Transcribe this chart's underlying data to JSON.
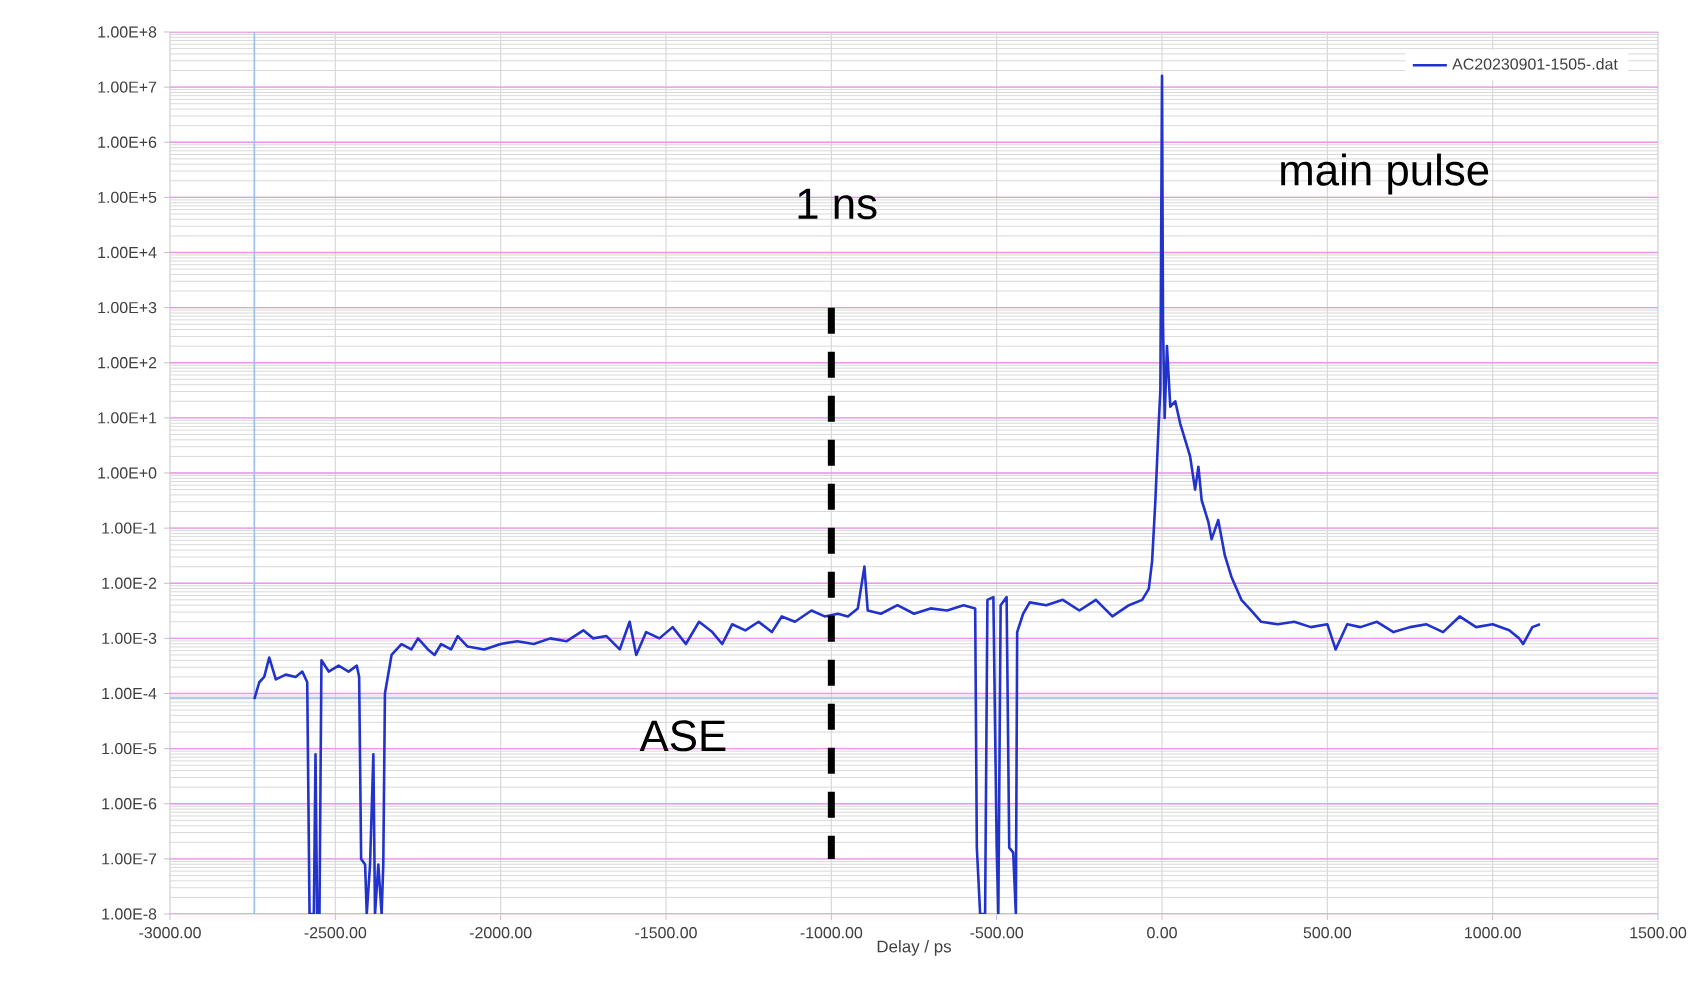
{
  "chart_data": {
    "type": "line",
    "xlabel": "Delay / ps",
    "xlim": [
      -3000,
      1500
    ],
    "xticks": [
      {
        "value": -3000,
        "label": "-3000.00"
      },
      {
        "value": -2500,
        "label": "-2500.00"
      },
      {
        "value": -2000,
        "label": "-2000.00"
      },
      {
        "value": -1500,
        "label": "-1500.00"
      },
      {
        "value": -1000,
        "label": "-1000.00"
      },
      {
        "value": -500,
        "label": "-500.00"
      },
      {
        "value": 0,
        "label": "0.00"
      },
      {
        "value": 500,
        "label": "500.00"
      },
      {
        "value": 1000,
        "label": "1000.00"
      },
      {
        "value": 1500,
        "label": "1500.00"
      }
    ],
    "ylim": [
      1e-08,
      100000000.0
    ],
    "log": "y",
    "yticks": [
      {
        "value": 1e-08,
        "label": "1.00E-8"
      },
      {
        "value": 1e-07,
        "label": "1.00E-7"
      },
      {
        "value": 1e-06,
        "label": "1.00E-6"
      },
      {
        "value": 1e-05,
        "label": "1.00E-5"
      },
      {
        "value": 0.0001,
        "label": "1.00E-4"
      },
      {
        "value": 0.001,
        "label": "1.00E-3"
      },
      {
        "value": 0.01,
        "label": "1.00E-2"
      },
      {
        "value": 0.1,
        "label": "1.00E-1"
      },
      {
        "value": 1,
        "label": "1.00E+0"
      },
      {
        "value": 10,
        "label": "1.00E+1"
      },
      {
        "value": 100,
        "label": "1.00E+2"
      },
      {
        "value": 1000,
        "label": "1.00E+3"
      },
      {
        "value": 10000.0,
        "label": "1.00E+4"
      },
      {
        "value": 100000.0,
        "label": "1.00E+5"
      },
      {
        "value": 1000000.0,
        "label": "1.00E+6"
      },
      {
        "value": 10000000.0,
        "label": "1.00E+7"
      },
      {
        "value": 100000000.0,
        "label": "1.00E+8"
      }
    ],
    "grid": true,
    "legend": "top right",
    "series": [
      {
        "name": "AC20230901-1505-.dat",
        "color": "#2233cc",
        "line_style": "solid",
        "x": [
          -2745,
          -2730,
          -2715,
          -2700,
          -2680,
          -2650,
          -2620,
          -2600,
          -2585,
          -2578,
          -2565,
          -2560,
          -2555,
          -2548,
          -2542,
          -2520,
          -2490,
          -2460,
          -2435,
          -2428,
          -2422,
          -2410,
          -2405,
          -2395,
          -2385,
          -2380,
          -2370,
          -2360,
          -2355,
          -2350,
          -2330,
          -2300,
          -2270,
          -2250,
          -2220,
          -2200,
          -2180,
          -2150,
          -2130,
          -2100,
          -2050,
          -2000,
          -1950,
          -1900,
          -1850,
          -1800,
          -1750,
          -1720,
          -1680,
          -1640,
          -1610,
          -1590,
          -1560,
          -1520,
          -1480,
          -1440,
          -1400,
          -1360,
          -1330,
          -1300,
          -1260,
          -1220,
          -1180,
          -1150,
          -1110,
          -1060,
          -1020,
          -980,
          -950,
          -920,
          -900,
          -890,
          -850,
          -800,
          -750,
          -700,
          -650,
          -600,
          -565,
          -560,
          -550,
          -535,
          -528,
          -510,
          -500,
          -495,
          -488,
          -470,
          -462,
          -450,
          -442,
          -438,
          -420,
          -400,
          -350,
          -300,
          -250,
          -200,
          -150,
          -100,
          -60,
          -40,
          -30,
          -20,
          -10,
          -5,
          0,
          3,
          8,
          15,
          25,
          40,
          55,
          70,
          85,
          100,
          110,
          120,
          140,
          150,
          170,
          190,
          210,
          240,
          270,
          300,
          350,
          400,
          450,
          500,
          525,
          560,
          600,
          650,
          700,
          750,
          800,
          850,
          900,
          950,
          1000,
          1050,
          1080,
          1092,
          1120,
          1143
        ],
        "values": [
          7.9e-05,
          0.00016,
          0.0002,
          0.00045,
          0.00018,
          0.00022,
          0.0002,
          0.00025,
          0.00016,
          1e-08,
          1e-08,
          7.9e-06,
          1e-08,
          1e-08,
          0.0004,
          0.00025,
          0.00032,
          0.00025,
          0.00032,
          0.0002,
          1e-07,
          7.9e-08,
          1e-08,
          7.9e-08,
          7.9e-06,
          1e-08,
          7.9e-08,
          1e-08,
          7.9e-08,
          0.0001,
          0.0005,
          0.00079,
          0.00063,
          0.001,
          0.00063,
          0.0005,
          0.00079,
          0.00063,
          0.0011,
          0.00071,
          0.00063,
          0.00079,
          0.00089,
          0.00079,
          0.001,
          0.00089,
          0.0014,
          0.001,
          0.0011,
          0.00063,
          0.002,
          0.0005,
          0.0013,
          0.001,
          0.0016,
          0.00079,
          0.002,
          0.0013,
          0.00079,
          0.0018,
          0.0014,
          0.002,
          0.0013,
          0.0025,
          0.002,
          0.0032,
          0.0025,
          0.0028,
          0.0025,
          0.0035,
          0.02,
          0.0032,
          0.0028,
          0.004,
          0.0028,
          0.0035,
          0.0032,
          0.004,
          0.0035,
          1.6e-07,
          1e-08,
          1e-08,
          0.005,
          0.0056,
          1.6e-07,
          1e-08,
          0.004,
          0.0056,
          1.6e-07,
          1.3e-07,
          1e-08,
          0.0013,
          0.0028,
          0.0045,
          0.004,
          0.005,
          0.0032,
          0.005,
          0.0025,
          0.004,
          0.005,
          0.0079,
          0.025,
          0.32,
          7.9,
          32,
          16000000.0,
          500,
          10,
          200,
          16,
          20,
          7.9,
          4,
          2,
          0.5,
          1.3,
          0.32,
          0.13,
          0.063,
          0.14,
          0.032,
          0.013,
          0.005,
          0.0032,
          0.002,
          0.0018,
          0.002,
          0.0016,
          0.0018,
          0.00063,
          0.0018,
          0.0016,
          0.002,
          0.0013,
          0.0016,
          0.0018,
          0.0013,
          0.0025,
          0.0016,
          0.0018,
          0.0014,
          0.001,
          0.00079,
          0.0016,
          0.0018
        ]
      },
      {
        "color": "#000000",
        "line_style": "dashed",
        "x": [
          -1000,
          -1000
        ],
        "values": [
          1000,
          1e-07
        ]
      }
    ],
    "ref_lines": [
      {
        "axis": "x",
        "value": -2745,
        "color": "#9dbdf0"
      },
      {
        "axis": "y",
        "value": 8.3e-05,
        "color": "#9dbdf0"
      }
    ],
    "annotations": [
      "1 ns",
      "main pulse",
      "ASE"
    ]
  }
}
